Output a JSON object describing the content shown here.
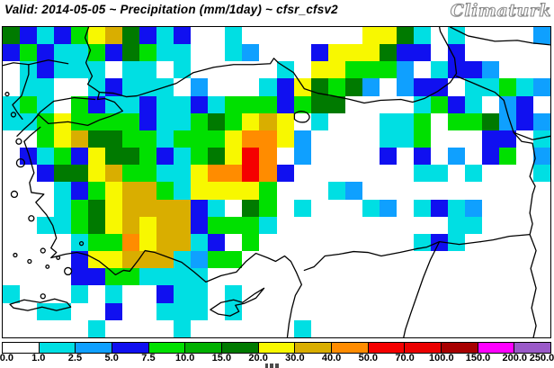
{
  "header": {
    "title": "Valid: 2014-05-05 ~ Precipitation (mm/1day) ~ cfsr_cfsv2",
    "logo": "Climaturk"
  },
  "chart_data": {
    "type": "heatmap",
    "title": "Valid: 2014-05-05 ~ Precipitation (mm/1day) ~ cfsr_cfsv2",
    "valid_date": "2014-05-05",
    "variable": "Precipitation",
    "unit": "mm/1day",
    "model": "cfsr_cfsv2",
    "region": "Turkey / Eastern Mediterranean / Black Sea",
    "colorbar": {
      "labels": [
        "0.0",
        "1.0",
        "2.5",
        "5.0",
        "7.5",
        "10.0",
        "15.0",
        "20.0",
        "30.0",
        "40.0",
        "50.0",
        "70.0",
        "100.0",
        "150.0",
        "200.0",
        "250.0"
      ],
      "colors": [
        "#FFFFFF",
        "#00DFE3",
        "#0FA0FF",
        "#1010F0",
        "#00E000",
        "#00B000",
        "#007A00",
        "#F8F800",
        "#D9AE00",
        "#FF8C00",
        "#F50000",
        "#EB0000",
        "#A80000",
        "#FF00FF",
        "#9A5AC8"
      ]
    },
    "grid": {
      "cols": 32,
      "rows": 18,
      "palette": {
        ".": "#FFFFFF",
        "c": "#00DFE3",
        "l": "#0FA0FF",
        "b": "#1010F0",
        "g": "#00E000",
        "m": "#00B000",
        "d": "#007A00",
        "y": "#F8F800",
        "o": "#D9AE00",
        "r": "#FF8C00",
        "R": "#F50000"
      },
      "cells": [
        "dbcbgyodbcb..c.......yydc.c....l",
        "bgbccgbdgcc..cl...byyydbb.b.....",
        ".cbccc.cc.c.....c.yygggl.cbbl...",
        ".cc..cbccc.l...cbydgdl.lbb.ccgcl",
        "cgc.gbccbccbcgggbgdd....cgbc.lb.",
        "ccgyggggbccgdgyoy.c...ccg.ggdlbl",
        "..gyoddggcgggyrryl....ccg...bb.c",
        ".bcgbyddgbcgdyRr.l....b.b.l.bg.l",
        "..bddyoggccyrrRrb.......cc.c...c",
        "...cbgyoogcyyyyg...cl...........",
        "...cgdyoooobc.dg.c...cl.cbcl....",
        "..ccgdyoyoobgggc..........cc....",
        "....cggryoocb.g.........cbc.....",
        "....byyoooclgg..................",
        "....bbggcccc....................",
        "c...c.c..bcc.c..................",
        "..cc..b..ccc.c..................",
        ".....c....c......c.............."
      ]
    }
  }
}
